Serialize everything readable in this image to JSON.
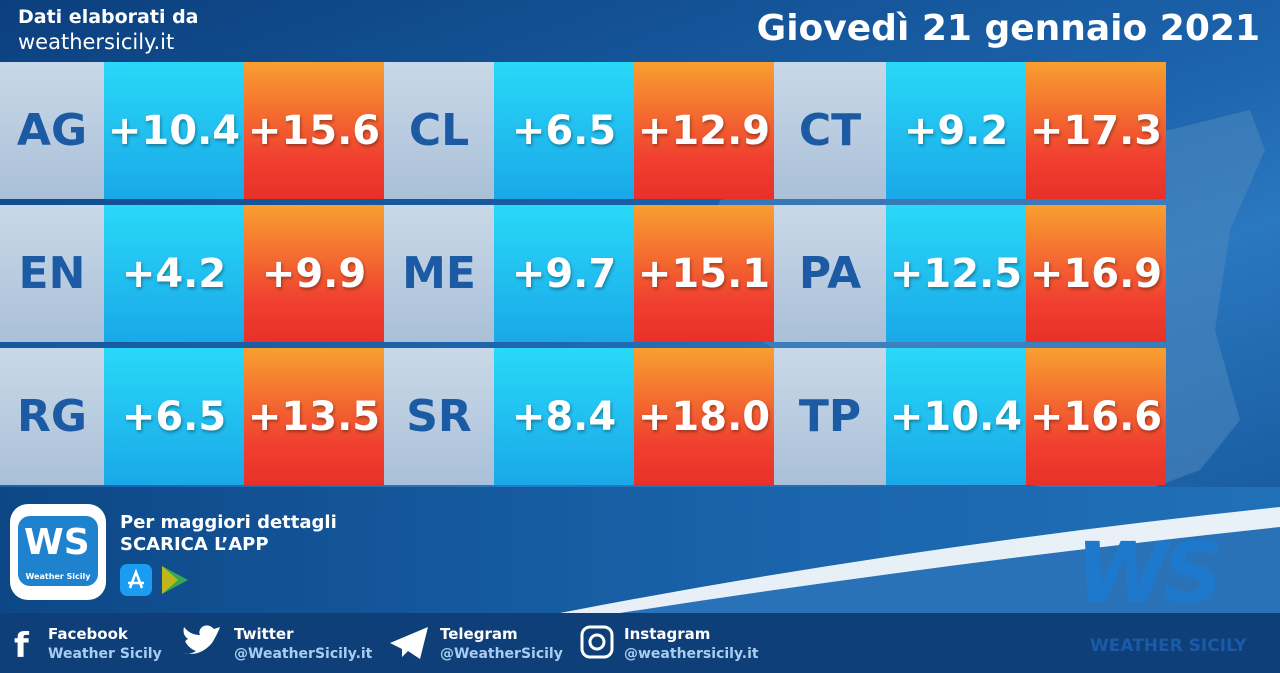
{
  "header": {
    "source_line1": "Dati elaborati da",
    "source_line2": "weathersicily.it",
    "date": "Giovedì 21 gennaio 2021"
  },
  "table": {
    "rows": [
      [
        {
          "code": "AG",
          "min": "+10.4",
          "max": "+15.6"
        },
        {
          "code": "CL",
          "min": "+6.5",
          "max": "+12.9"
        },
        {
          "code": "CT",
          "min": "+9.2",
          "max": "+17.3"
        }
      ],
      [
        {
          "code": "EN",
          "min": "+4.2",
          "max": "+9.9"
        },
        {
          "code": "ME",
          "min": "+9.7",
          "max": "+15.1"
        },
        {
          "code": "PA",
          "min": "+12.5",
          "max": "+16.9"
        }
      ],
      [
        {
          "code": "RG",
          "min": "+6.5",
          "max": "+13.5"
        },
        {
          "code": "SR",
          "min": "+8.4",
          "max": "+18.0"
        },
        {
          "code": "TP",
          "min": "+10.4",
          "max": "+16.6"
        }
      ]
    ]
  },
  "app": {
    "line1": "Per maggiori dettagli",
    "line2": "SCARICA L’APP",
    "logo_mark": "WS",
    "logo_text": "Weather Sicily"
  },
  "brand": {
    "mark": "WS",
    "name": "WEATHER SICILY"
  },
  "social": [
    {
      "name": "Facebook",
      "handle": "Weather Sicily"
    },
    {
      "name": "Twitter",
      "handle": "@WeatherSicily.it"
    },
    {
      "name": "Telegram",
      "handle": "@WeatherSicily"
    },
    {
      "name": "Instagram",
      "handle": "@weathersicily.it"
    }
  ]
}
